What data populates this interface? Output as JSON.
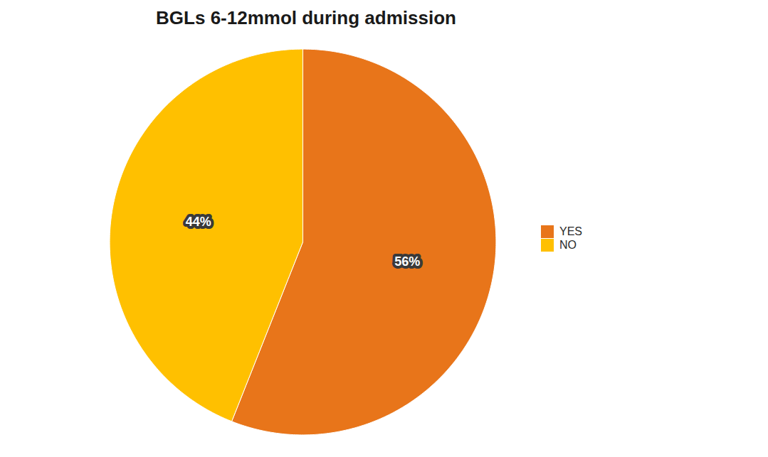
{
  "chart_data": {
    "type": "pie",
    "title": "BGLs 6-12mmol during admission",
    "categories": [
      "YES",
      "NO"
    ],
    "values": [
      56,
      44
    ],
    "value_labels": [
      "56%",
      "44%"
    ],
    "colors": [
      "#E8751A",
      "#FFC000"
    ],
    "data_labels": true,
    "legend": "right"
  }
}
